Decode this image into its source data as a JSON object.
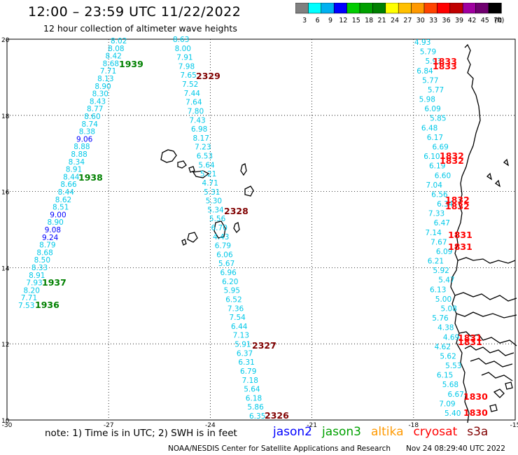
{
  "header": {
    "title": "12:00 – 23:59 UTC 11/22/2022",
    "subtitle": "12 hour collection of altimeter wave heights"
  },
  "colorbar": {
    "labels": [
      "3",
      "6",
      "9",
      "12",
      "15",
      "18",
      "21",
      "24",
      "27",
      "30",
      "33",
      "36",
      "39",
      "42",
      "45",
      "70"
    ],
    "unit": "(ft)",
    "colors": [
      "#808080",
      "#00ffff",
      "#00b0f0",
      "#0000ff",
      "#00cc00",
      "#00a000",
      "#008000",
      "#ffff00",
      "#ffc000",
      "#ff9900",
      "#ff4400",
      "#ff0000",
      "#c00000",
      "#a000a0",
      "#700070",
      "#000000"
    ]
  },
  "axes": {
    "x_ticks": [
      "-30",
      "-27",
      "-24",
      "-21",
      "-18",
      "-15"
    ],
    "y_ticks": [
      "20",
      "18",
      "16",
      "14",
      "12",
      "10"
    ]
  },
  "colors": {
    "low": "#00c8e8",
    "mid": "#0000ff",
    "jason3_pass": "#008000",
    "cryosat_pass": "#ff0000",
    "s3a_pass": "#800000"
  },
  "tracks": [
    {
      "id": "jason3-a",
      "passes": [
        {
          "label": "1939",
          "color": "#008000"
        },
        {
          "label": "1938",
          "color": "#008000"
        },
        {
          "label": "1937",
          "color": "#008000"
        },
        {
          "label": "1936",
          "color": "#008000"
        }
      ],
      "values": [
        "8.02",
        "8.08",
        "8.42",
        "8.68",
        "7.71",
        "8.13",
        "8.90",
        "8.30",
        "8.43",
        "8.77",
        "8.60",
        "8.74",
        "8.38",
        "9.06",
        "8.88",
        "8.88",
        "8.34",
        "8.91",
        "8.44",
        "8.66",
        "8.44",
        "8.62",
        "8.51",
        "9.00",
        "8.90",
        "9.08",
        "9.24",
        "8.79",
        "8.68",
        "8.50",
        "8.33",
        "8.91",
        "7.93",
        "8.20",
        "7.71",
        "7.53"
      ]
    },
    {
      "id": "s3a-b",
      "passes": [
        {
          "label": "2329",
          "color": "#800000"
        },
        {
          "label": "2328",
          "color": "#800000"
        },
        {
          "label": "2327",
          "color": "#800000"
        },
        {
          "label": "2326",
          "color": "#800000"
        }
      ],
      "values": [
        "8.63",
        "8.00",
        "7.91",
        "7.98",
        "7.65",
        "7.52",
        "7.44",
        "7.64",
        "7.80",
        "7.43",
        "6.98",
        "8.17",
        "7.23",
        "6.53",
        "5.64",
        "5.21",
        "4.71",
        "5.31",
        "5.30",
        "5.34",
        "5.56",
        "6.70",
        "4.43",
        "6.79",
        "6.06",
        "5.67",
        "6.96",
        "6.20",
        "5.95",
        "6.52",
        "7.36",
        "7.54",
        "6.44",
        "7.13",
        "5.91",
        "6.37",
        "6.31",
        "6.79",
        "7.18",
        "5.64",
        "6.18",
        "5.86",
        "6.35"
      ]
    },
    {
      "id": "cryosat-c",
      "passes": [
        {
          "label": "1833",
          "color": "#ff0000"
        },
        {
          "label": "1833",
          "color": "#ff0000"
        },
        {
          "label": "1832",
          "color": "#ff0000"
        },
        {
          "label": "1832",
          "color": "#ff0000"
        },
        {
          "label": "1832",
          "color": "#ff0000"
        },
        {
          "label": "1832",
          "color": "#ff0000"
        },
        {
          "label": "1831",
          "color": "#ff0000"
        },
        {
          "label": "1831",
          "color": "#ff0000"
        },
        {
          "label": "1831",
          "color": "#ff0000"
        },
        {
          "label": "1831",
          "color": "#ff0000"
        },
        {
          "label": "1830",
          "color": "#ff0000"
        },
        {
          "label": "1830",
          "color": "#ff0000"
        }
      ],
      "values": [
        "4.93",
        "5.79",
        "5.93",
        "6.84",
        "5.77",
        "5.77",
        "5.98",
        "6.09",
        "5.85",
        "6.48",
        "6.17",
        "6.69",
        "6.10",
        "6.19",
        "6.60",
        "7.04",
        "6.56",
        "6.34",
        "7.33",
        "6.47",
        "7.14",
        "7.67",
        "6.09",
        "6.21",
        "5.92",
        "5.47",
        "6.13",
        "5.00",
        "5.08",
        "5.76",
        "4.38",
        "4.69",
        "4.62",
        "5.62",
        "5.53",
        "6.15",
        "5.68",
        "6.67",
        "7.09",
        "5.40"
      ]
    }
  ],
  "footer": {
    "note": "note:  1) Time is in UTC;  2) SWH is in feet",
    "satellites": [
      {
        "name": "jason2",
        "color": "#0000ff"
      },
      {
        "name": "jason3",
        "color": "#00a000"
      },
      {
        "name": "altika",
        "color": "#ff9900"
      },
      {
        "name": "cryosat",
        "color": "#ff0000"
      },
      {
        "name": "s3a",
        "color": "#800000"
      }
    ],
    "credit": "NOAA/NESDIS Center for Satellite Applications and Research",
    "generated": "Nov 24 08:29:40 UTC 2022"
  }
}
